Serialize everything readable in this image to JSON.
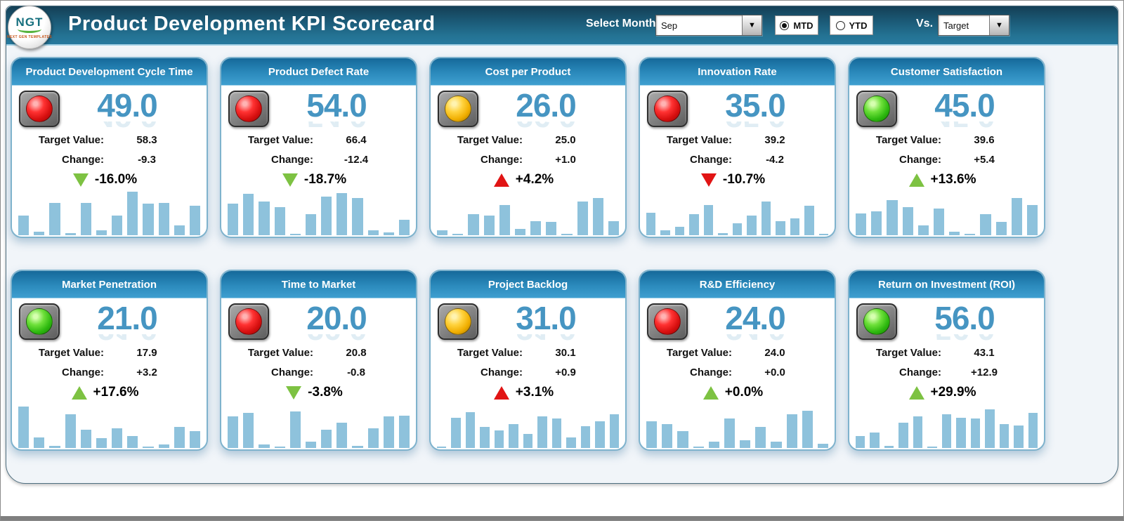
{
  "header": {
    "logo_text": "NGT",
    "logo_subtext": "NEXT GEN TEMPLATES",
    "title": "Product Development KPI Scorecard",
    "select_month_label": "Select Month",
    "month_value": "Sep",
    "period_options": [
      {
        "label": "MTD",
        "selected": true
      },
      {
        "label": "YTD",
        "selected": false
      }
    ],
    "vs_label": "Vs.",
    "vs_value": "Target"
  },
  "labels": {
    "target": "Target Value:",
    "change": "Change:"
  },
  "colors": {
    "header_teal": "#1b5a77",
    "card_header_blue": "#2b8abc",
    "value_blue": "#4695c2",
    "bar_blue": "#8ec2dc",
    "trend_green": "#7dc242",
    "trend_red": "#e11414",
    "status_red": "#d60f0f",
    "status_yellow": "#f0ae00",
    "status_green": "#2db80f"
  },
  "cards": [
    {
      "title": "Product Development Cycle Time",
      "status": "red",
      "value": "49.0",
      "target_value": "58.3",
      "change_value": "-9.3",
      "trend_direction": "down",
      "trend_color": "green",
      "trend_pct": "-16.0%",
      "bars": [
        45,
        8,
        75,
        5,
        75,
        12,
        45,
        100,
        72,
        75,
        22,
        68
      ]
    },
    {
      "title": "Product Defect Rate",
      "status": "red",
      "value": "54.0",
      "target_value": "66.4",
      "change_value": "-12.4",
      "trend_direction": "down",
      "trend_color": "green",
      "trend_pct": "-18.7%",
      "bars": [
        72,
        95,
        78,
        65,
        4,
        48,
        88,
        97,
        85,
        12,
        7,
        35
      ]
    },
    {
      "title": "Cost per Product",
      "status": "yellow",
      "value": "26.0",
      "target_value": "25.0",
      "change_value": "+1.0",
      "trend_direction": "up",
      "trend_color": "red",
      "trend_pct": "+4.2%",
      "bars": [
        12,
        3,
        48,
        45,
        70,
        15,
        32,
        30,
        4,
        78,
        85,
        32
      ]
    },
    {
      "title": "Innovation Rate",
      "status": "red",
      "value": "35.0",
      "target_value": "39.2",
      "change_value": "-4.2",
      "trend_direction": "down",
      "trend_color": "red",
      "trend_pct": "-10.7%",
      "bars": [
        52,
        12,
        20,
        48,
        70,
        5,
        28,
        45,
        78,
        32,
        38,
        68,
        3
      ]
    },
    {
      "title": "Customer Satisfaction",
      "status": "green",
      "value": "45.0",
      "target_value": "39.6",
      "change_value": "+5.4",
      "trend_direction": "up",
      "trend_color": "green",
      "trend_pct": "+13.6%",
      "bars": [
        50,
        55,
        80,
        65,
        22,
        62,
        8,
        3,
        48,
        30,
        85,
        70
      ]
    },
    {
      "title": "Market Penetration",
      "status": "green",
      "value": "21.0",
      "target_value": "17.9",
      "change_value": "+3.2",
      "trend_direction": "up",
      "trend_color": "green",
      "trend_pct": "+17.6%",
      "bars": [
        95,
        25,
        5,
        78,
        42,
        22,
        45,
        28,
        4,
        8,
        48,
        38
      ]
    },
    {
      "title": "Time to Market",
      "status": "red",
      "value": "20.0",
      "target_value": "20.8",
      "change_value": "-0.8",
      "trend_direction": "down",
      "trend_color": "green",
      "trend_pct": "-3.8%",
      "bars": [
        72,
        80,
        8,
        4,
        84,
        15,
        42,
        58,
        5,
        45,
        72,
        75
      ]
    },
    {
      "title": "Project Backlog",
      "status": "yellow",
      "value": "31.0",
      "target_value": "30.1",
      "change_value": "+0.9",
      "trend_direction": "up",
      "trend_color": "red",
      "trend_pct": "+3.1%",
      "bars": [
        3,
        70,
        82,
        48,
        40,
        55,
        32,
        72,
        68,
        25,
        50,
        62,
        78
      ]
    },
    {
      "title": "R&D Efficiency",
      "status": "red",
      "value": "24.0",
      "target_value": "24.0",
      "change_value": "+0.0",
      "trend_direction": "up",
      "trend_color": "green",
      "trend_pct": "+0.0%",
      "bars": [
        62,
        55,
        38,
        3,
        15,
        68,
        18,
        48,
        15,
        78,
        85,
        10
      ]
    },
    {
      "title": "Return on Investment (ROI)",
      "status": "green",
      "value": "56.0",
      "target_value": "43.1",
      "change_value": "+12.9",
      "trend_direction": "up",
      "trend_color": "green",
      "trend_pct": "+29.9%",
      "bars": [
        28,
        35,
        5,
        58,
        72,
        3,
        78,
        70,
        68,
        88,
        55,
        52,
        80
      ]
    }
  ]
}
